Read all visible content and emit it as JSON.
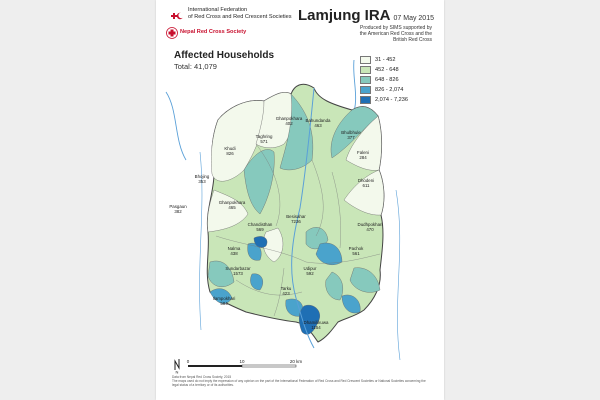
{
  "header": {
    "ifrc_lines": [
      "International Federation",
      "of Red Cross and Red Crescent Societies"
    ],
    "nrcs_name": "Nepal Red Cross Society",
    "title": "Lamjung IRA",
    "date": "07 May 2015",
    "credit_lines": [
      "Produced by SIMS supported by",
      "the American Red Cross and the",
      "British Red Cross"
    ]
  },
  "map": {
    "heading": "Affected Households",
    "total": "Total: 41,079",
    "legend": [
      {
        "label": "31 - 452",
        "color": "#f3f9ec"
      },
      {
        "label": "452 - 648",
        "color": "#c9e6b8"
      },
      {
        "label": "648 - 826",
        "color": "#86c9bd"
      },
      {
        "label": "826 - 2,074",
        "color": "#4aa3cc"
      },
      {
        "label": "2,074 - 7,236",
        "color": "#1f6fb4"
      }
    ],
    "vdc_labels": [
      {
        "name": "Ghanpokhara",
        "value": "402"
      },
      {
        "name": "Bahundanda",
        "value": "463"
      },
      {
        "name": "Bhulbhule",
        "value": "377"
      },
      {
        "name": "Taghring",
        "value": "571"
      },
      {
        "name": "Khudi",
        "value": "826"
      },
      {
        "name": "Faleni",
        "value": "284"
      },
      {
        "name": "Bhojing",
        "value": "353"
      },
      {
        "name": "Dhodeni",
        "value": "611"
      },
      {
        "name": "Pasgaun",
        "value": "382"
      },
      {
        "name": "Ghanpokhara",
        "value": "465"
      },
      {
        "name": "Besisahar",
        "value": "7236"
      },
      {
        "name": "Dudhpokhari",
        "value": "470"
      },
      {
        "name": "Chandisthan",
        "value": "569"
      },
      {
        "name": "Nalma",
        "value": "438"
      },
      {
        "name": "Udipur",
        "value": "592"
      },
      {
        "name": "Pachok",
        "value": "561"
      },
      {
        "name": "Ilampokhari",
        "value": "584"
      },
      {
        "name": "Dhamilikuwa",
        "value": "1154"
      },
      {
        "name": "Tarku",
        "value": "423"
      },
      {
        "name": "Sundarbazar",
        "value": "1573"
      }
    ],
    "scale_labels": [
      "0",
      "10",
      "20 km"
    ],
    "north_label": "N"
  },
  "footer": {
    "lines": [
      "Data from Nepal Red Cross Society, 2015",
      "The maps used do not imply the expression of any opinion on the part of the International Federation of Red Cross and Red Crescent Societies or National Societies concerning the",
      "legal status of a territory or of its authorities."
    ]
  }
}
